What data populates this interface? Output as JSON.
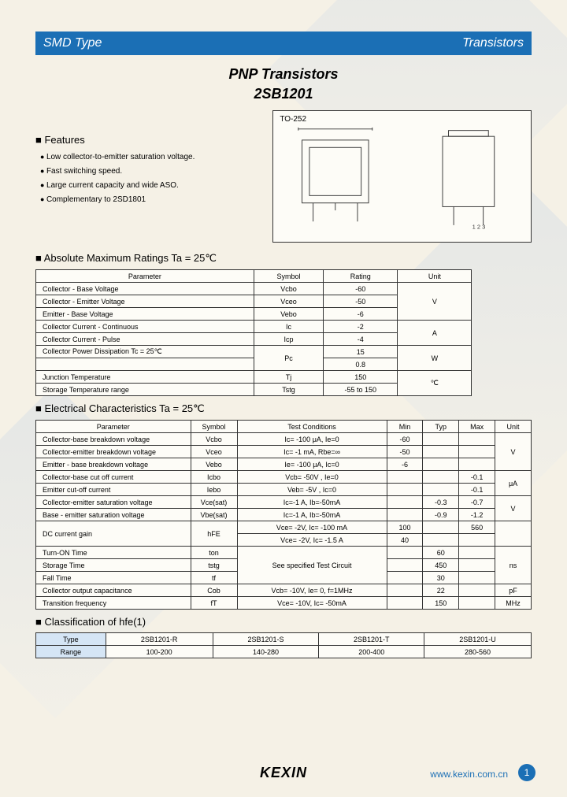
{
  "header": {
    "left": "SMD Type",
    "right": "Transistors"
  },
  "title": {
    "line1": "PNP  Transistors",
    "line2": "2SB1201"
  },
  "package_label": "TO-252",
  "features": {
    "title": "Features",
    "items": [
      "Low collector-to-emitter saturation voltage.",
      "Fast switching speed.",
      "Large current capacity and wide ASO.",
      "Complementary to 2SD1801"
    ]
  },
  "abs_max": {
    "title": "Absolute Maximum Ratings Ta = 25℃",
    "headers": [
      "Parameter",
      "Symbol",
      "Rating",
      "Unit"
    ],
    "rows": [
      {
        "param": "Collector - Base Voltage",
        "symbol": "Vcbo",
        "rating": "-60",
        "unit": "V",
        "unit_rowspan": 3
      },
      {
        "param": "Collector - Emitter Voltage",
        "symbol": "Vceo",
        "rating": "-50"
      },
      {
        "param": "Emitter - Base Voltage",
        "symbol": "Vebo",
        "rating": "-6"
      },
      {
        "param": "Collector Current - Continuous",
        "symbol": "Ic",
        "rating": "-2",
        "unit": "A",
        "unit_rowspan": 2
      },
      {
        "param": "Collector Current - Pulse",
        "symbol": "Icp",
        "rating": "-4"
      },
      {
        "param": "Collector Power Dissipation        Tc = 25℃",
        "symbol": "Pc",
        "rating": "15",
        "unit": "W",
        "symbol_rowspan": 2,
        "unit_rowspan": 2
      },
      {
        "param": "",
        "rating": "0.8"
      },
      {
        "param": "Junction Temperature",
        "symbol": "Tj",
        "rating": "150",
        "unit": "℃",
        "unit_rowspan": 2
      },
      {
        "param": "Storage Temperature range",
        "symbol": "Tstg",
        "rating": "-55 to 150"
      }
    ]
  },
  "elec": {
    "title": "Electrical Characteristics Ta = 25℃",
    "headers": [
      "Parameter",
      "Symbol",
      "Test Conditions",
      "Min",
      "Typ",
      "Max",
      "Unit"
    ],
    "rows": [
      {
        "param": "Collector-base breakdown voltage",
        "symbol": "Vcbo",
        "cond": "Ic= -100 μA,  Ie=0",
        "min": "-60",
        "typ": "",
        "max": "",
        "unit": "V",
        "unit_rowspan": 3
      },
      {
        "param": "Collector-emitter breakdown voltage",
        "symbol": "Vceo",
        "cond": "Ic= -1 mA,  Rbe=∞",
        "min": "-50",
        "typ": "",
        "max": ""
      },
      {
        "param": "Emitter - base breakdown voltage",
        "symbol": "Vebo",
        "cond": "Ie= -100 μA,  Ic=0",
        "min": "-6",
        "typ": "",
        "max": ""
      },
      {
        "param": "Collector-base cut off current",
        "symbol": "Icbo",
        "cond": "Vcb= -50V , Ie=0",
        "min": "",
        "typ": "",
        "max": "-0.1",
        "unit": "μA",
        "unit_rowspan": 2
      },
      {
        "param": "Emitter cut-off current",
        "symbol": "Iebo",
        "cond": "Veb= -5V , Ic=0",
        "min": "",
        "typ": "",
        "max": "-0.1"
      },
      {
        "param": "Collector-emitter saturation voltage",
        "symbol": "Vce(sat)",
        "cond": "Ic=-1 A, Ib=-50mA",
        "min": "",
        "typ": "-0.3",
        "max": "-0.7",
        "unit": "V",
        "unit_rowspan": 2
      },
      {
        "param": "Base - emitter saturation voltage",
        "symbol": "Vbe(sat)",
        "cond": "Ic=-1 A, Ib=-50mA",
        "min": "",
        "typ": "-0.9",
        "max": "-1.2"
      },
      {
        "param": "DC current gain",
        "symbol": "hFE",
        "cond": "Vce= -2V, Ic= -100 mA",
        "min": "100",
        "typ": "",
        "max": "560",
        "param_rowspan": 2,
        "symbol_rowspan": 2,
        "unit": "",
        "unit_rowspan": 2
      },
      {
        "cond": "Vce= -2V, Ic= -1.5 A",
        "min": "40",
        "typ": "",
        "max": ""
      },
      {
        "param": "Turn-ON Time",
        "symbol": "ton",
        "cond": "See specified Test Circuit",
        "cond_rowspan": 3,
        "min": "",
        "typ": "60",
        "max": "",
        "unit": "ns",
        "unit_rowspan": 3
      },
      {
        "param": "Storage Time",
        "symbol": "tstg",
        "min": "",
        "typ": "450",
        "max": ""
      },
      {
        "param": "Fall Time",
        "symbol": "tf",
        "min": "",
        "typ": "30",
        "max": ""
      },
      {
        "param": "Collector output capacitance",
        "symbol": "Cob",
        "cond": "Vcb= -10V, Ie= 0, f=1MHz",
        "min": "",
        "typ": "22",
        "max": "",
        "unit": "pF"
      },
      {
        "param": "Transition frequency",
        "symbol": "fT",
        "cond": "Vce= -10V, Ic= -50mA",
        "min": "",
        "typ": "150",
        "max": "",
        "unit": "MHz"
      }
    ]
  },
  "classification": {
    "title": "Classification of hfe(1)",
    "headers": [
      "Type",
      "2SB1201-R",
      "2SB1201-S",
      "2SB1201-T",
      "2SB1201-U"
    ],
    "row": [
      "Range",
      "100-200",
      "140-280",
      "200-400",
      "280-560"
    ]
  },
  "footer": {
    "brand": "KEXIN",
    "url": "www.kexin.com.cn",
    "page": "1"
  },
  "colors": {
    "accent": "#1b6fb5",
    "bg": "#f5f1e6",
    "table_bg": "#fdfcf7",
    "class_cell": "#d5e5f5",
    "border": "#333333"
  }
}
